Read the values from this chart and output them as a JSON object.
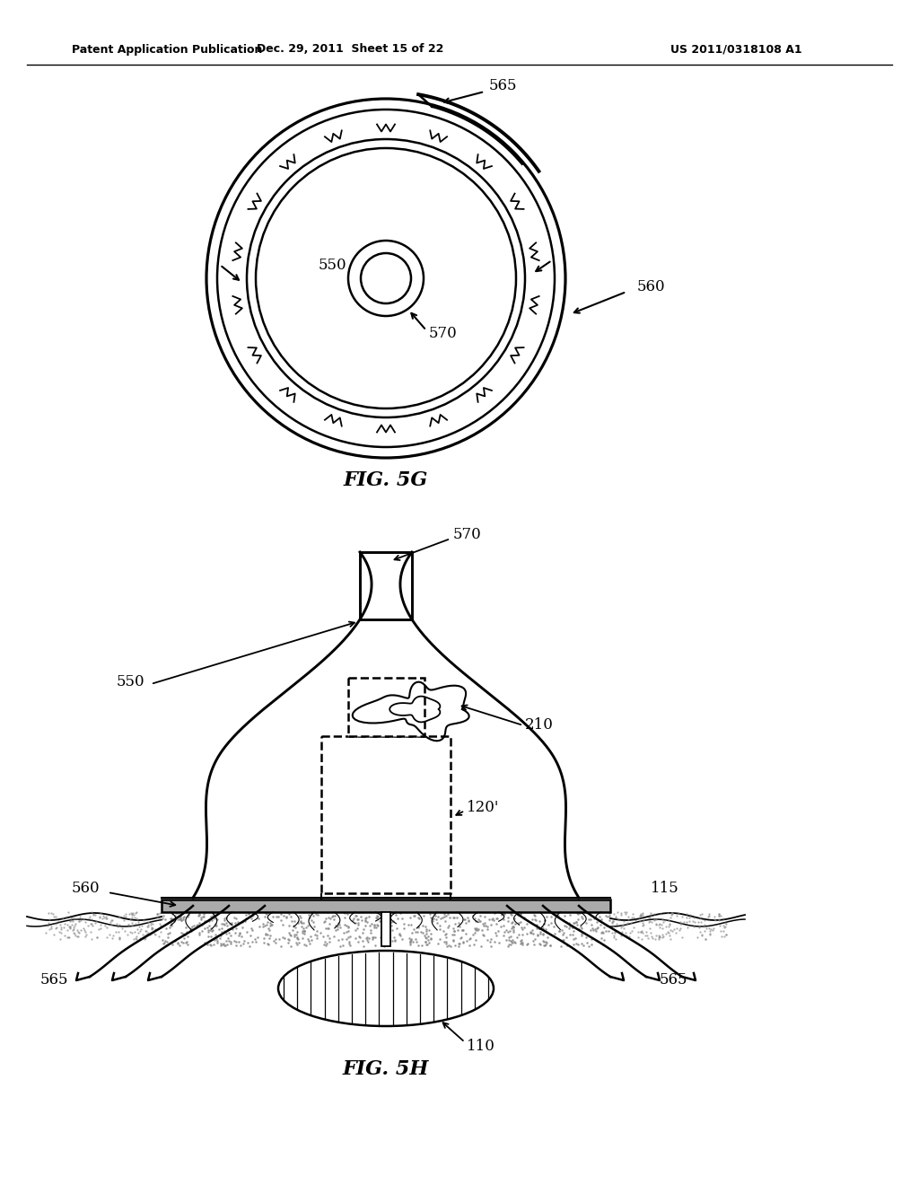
{
  "title_line1": "Patent Application Publication",
  "title_line2": "Dec. 29, 2011  Sheet 15 of 22",
  "title_line3": "US 2011/0318108 A1",
  "fig5g_label": "FIG. 5G",
  "fig5h_label": "FIG. 5H",
  "labels": {
    "550_top": "550",
    "560_top": "560",
    "565_top": "565",
    "570_top": "570",
    "550_bot": "550",
    "560_bot": "560",
    "565_bot_left": "565",
    "565_bot_right": "565",
    "570_bot": "570",
    "210": "210",
    "120prime": "120'",
    "115": "115",
    "110": "110"
  },
  "bg_color": "#ffffff",
  "line_color": "#000000"
}
